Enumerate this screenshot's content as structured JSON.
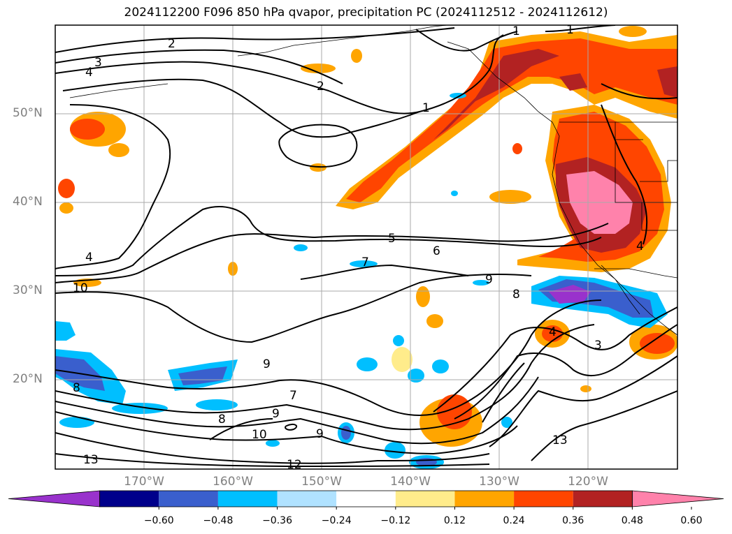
{
  "title": "2024112200 F096 850 hPa qvapor, precipitation PC (2024112512 - 2024112612)",
  "lon_labels": [
    "170°W",
    "160°W",
    "150°W",
    "140°W",
    "130°W",
    "120°W"
  ],
  "lat_labels": [
    "50°N",
    "40°N",
    "30°N",
    "20°N"
  ],
  "colorbar": {
    "labels": [
      "−0.60",
      "−0.48",
      "−0.36",
      "−0.24",
      "−0.12",
      "0.12",
      "0.24",
      "0.36",
      "0.48",
      "0.60"
    ],
    "colors": [
      "#9932cc",
      "#00008b",
      "#3a5fcd",
      "#00bfff",
      "#b0e2ff",
      "#ffffff",
      "#ffec8b",
      "#ffa500",
      "#ff4500",
      "#b22222",
      "#ff82ab"
    ]
  },
  "contour_labels": [
    "1",
    "1",
    "1",
    "2",
    "2",
    "3",
    "4",
    "4",
    "5",
    "6",
    "7",
    "7",
    "8",
    "8",
    "8",
    "9",
    "9",
    "9",
    "9",
    "10",
    "10",
    "12",
    "13",
    "13",
    "4",
    "4",
    "3"
  ]
}
